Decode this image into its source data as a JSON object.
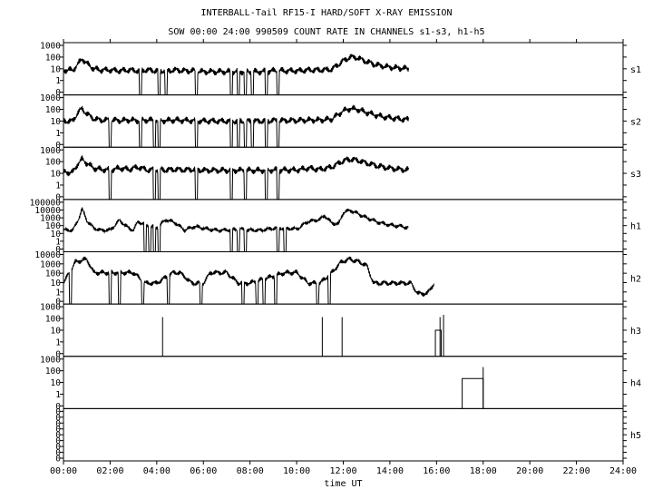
{
  "chart_data": {
    "type": "line",
    "title": "INTERBALL-Tail RF15-I HARD/SOFT X-RAY EMISSION",
    "subtitle": "SOW 00:00 24:00 990509  COUNT RATE IN CHANNELS s1-s3, h1-h5",
    "xlabel": "time UT",
    "x_unit": "hours UT",
    "xlim": [
      0,
      24
    ],
    "x_ticks": [
      "00:00",
      "02:00",
      "04:00",
      "06:00",
      "08:00",
      "10:00",
      "12:00",
      "14:00",
      "16:00",
      "18:00",
      "20:00",
      "22:00",
      "24:00"
    ],
    "y_scale": "log",
    "grid": false,
    "panels": [
      {
        "name": "s1",
        "ylim": [
          0.1,
          1000
        ],
        "y_ticks": [
          "1000",
          "100",
          "10",
          "1",
          "0"
        ],
        "x": [
          0.0,
          0.4,
          0.6,
          0.8,
          1.0,
          1.3,
          1.6,
          2.0,
          2.4,
          2.8,
          3.2,
          3.6,
          4.0,
          4.4,
          4.8,
          5.2,
          5.6,
          6.0,
          6.5,
          7.0,
          7.5,
          8.0,
          8.5,
          9.0,
          9.5,
          10.0,
          10.5,
          11.0,
          11.5,
          12.0,
          12.3,
          12.6,
          13.0,
          13.4,
          13.8,
          14.2,
          14.5,
          14.8
        ],
        "y": [
          8,
          8,
          20,
          60,
          25,
          10,
          8,
          8,
          7,
          8,
          7,
          8,
          7,
          7,
          8,
          7,
          7,
          6,
          6,
          6,
          6,
          6,
          6,
          7,
          7,
          7,
          8,
          8,
          9,
          40,
          80,
          70,
          35,
          20,
          15,
          12,
          11,
          10
        ],
        "dropouts": [
          [
            3.25,
            3.35
          ],
          [
            4.05,
            4.15
          ],
          [
            4.35,
            4.45
          ],
          [
            5.65,
            5.75
          ],
          [
            7.15,
            7.25
          ],
          [
            7.45,
            7.55
          ],
          [
            7.75,
            7.85
          ],
          [
            8.05,
            8.15
          ],
          [
            8.65,
            8.75
          ],
          [
            9.15,
            9.25
          ]
        ]
      },
      {
        "name": "s2",
        "ylim": [
          0.1,
          1000
        ],
        "y_ticks": [
          "1000",
          "100",
          "10",
          "1",
          "0"
        ],
        "x": [
          0.0,
          0.4,
          0.6,
          0.8,
          1.0,
          1.3,
          1.6,
          2.0,
          2.4,
          2.8,
          3.2,
          3.6,
          4.0,
          4.4,
          4.8,
          5.2,
          5.6,
          6.0,
          6.5,
          7.0,
          7.5,
          8.0,
          8.5,
          9.0,
          9.5,
          10.0,
          10.5,
          11.0,
          11.5,
          12.0,
          12.3,
          12.6,
          13.0,
          13.4,
          13.8,
          14.2,
          14.5,
          14.8
        ],
        "y": [
          10,
          10,
          40,
          90,
          35,
          15,
          12,
          12,
          11,
          12,
          11,
          12,
          11,
          11,
          12,
          11,
          11,
          10,
          10,
          10,
          10,
          10,
          10,
          11,
          11,
          11,
          12,
          12,
          14,
          60,
          90,
          80,
          45,
          28,
          20,
          16,
          14,
          13
        ],
        "dropouts": [
          [
            1.95,
            2.05
          ],
          [
            3.25,
            3.35
          ],
          [
            3.85,
            3.95
          ],
          [
            4.05,
            4.15
          ],
          [
            5.65,
            5.75
          ],
          [
            7.15,
            7.25
          ],
          [
            7.45,
            7.55
          ],
          [
            7.75,
            7.85
          ],
          [
            8.05,
            8.15
          ],
          [
            8.65,
            8.75
          ],
          [
            9.15,
            9.25
          ]
        ]
      },
      {
        "name": "s3",
        "ylim": [
          0.1,
          1000
        ],
        "y_ticks": [
          "1000",
          "100",
          "10",
          "1",
          "0"
        ],
        "x": [
          0.0,
          0.4,
          0.6,
          0.8,
          1.0,
          1.3,
          1.6,
          2.0,
          2.4,
          2.8,
          3.2,
          3.6,
          4.0,
          4.4,
          4.8,
          5.2,
          5.6,
          6.0,
          6.5,
          7.0,
          7.5,
          8.0,
          8.5,
          9.0,
          9.5,
          10.0,
          10.5,
          11.0,
          11.5,
          12.0,
          12.3,
          12.6,
          13.0,
          13.4,
          13.8,
          14.2,
          14.5,
          14.8
        ],
        "y": [
          12,
          12,
          50,
          120,
          60,
          25,
          20,
          18,
          25,
          20,
          30,
          18,
          20,
          18,
          20,
          18,
          20,
          17,
          17,
          17,
          17,
          17,
          17,
          18,
          18,
          18,
          25,
          20,
          30,
          90,
          120,
          100,
          60,
          40,
          28,
          22,
          20,
          18
        ],
        "dropouts": [
          [
            1.95,
            2.05
          ],
          [
            3.85,
            3.95
          ],
          [
            4.05,
            4.15
          ],
          [
            5.65,
            5.75
          ],
          [
            7.15,
            7.25
          ],
          [
            7.75,
            7.85
          ],
          [
            8.65,
            8.75
          ],
          [
            9.15,
            9.25
          ]
        ]
      },
      {
        "name": "h1",
        "ylim": [
          0.1,
          100000
        ],
        "y_ticks": [
          "100000",
          "10000",
          "1000",
          "100",
          "10",
          "1",
          "0"
        ],
        "x": [
          0.0,
          0.4,
          0.6,
          0.8,
          1.0,
          1.3,
          1.6,
          2.0,
          2.4,
          2.8,
          3.0,
          3.2,
          3.6,
          4.0,
          4.4,
          4.8,
          5.2,
          5.6,
          6.0,
          6.5,
          7.0,
          7.5,
          8.0,
          8.5,
          9.0,
          9.5,
          10.0,
          10.5,
          11.0,
          11.2,
          11.5,
          11.8,
          12.0,
          12.3,
          12.6,
          13.0,
          13.4,
          13.8,
          14.2,
          14.5,
          14.8
        ],
        "y": [
          30,
          30,
          300,
          8000,
          400,
          50,
          30,
          30,
          400,
          50,
          30,
          300,
          100,
          60,
          500,
          200,
          30,
          80,
          50,
          30,
          30,
          40,
          30,
          30,
          50,
          50,
          40,
          300,
          500,
          1500,
          200,
          150,
          3000,
          6000,
          2500,
          800,
          300,
          150,
          100,
          80,
          60
        ],
        "dropouts": [
          [
            3.45,
            3.55
          ],
          [
            3.65,
            3.75
          ],
          [
            3.85,
            3.95
          ],
          [
            4.05,
            4.15
          ],
          [
            7.15,
            7.25
          ],
          [
            7.45,
            7.55
          ],
          [
            7.75,
            7.85
          ],
          [
            9.15,
            9.25
          ],
          [
            9.45,
            9.55
          ]
        ]
      },
      {
        "name": "h2",
        "ylim": [
          0.1,
          10000
        ],
        "y_ticks": [
          "10000",
          "1000",
          "100",
          "10",
          "1",
          "0"
        ],
        "x": [
          0.0,
          0.5,
          1.0,
          1.3,
          3.0,
          3.5,
          4.0,
          4.7,
          5.0,
          5.5,
          6.0,
          6.3,
          7.0,
          7.5,
          8.0,
          9.5,
          10.0,
          10.5,
          11.0,
          11.5,
          11.9,
          12.3,
          12.7,
          13.0,
          13.3,
          14.0,
          14.9,
          15.2,
          15.6,
          15.9
        ],
        "y": [
          10,
          1000,
          2000,
          100,
          100,
          10,
          10,
          100,
          100,
          10,
          10,
          100,
          100,
          10,
          10,
          100,
          100,
          10,
          10,
          100,
          1000,
          2000,
          1000,
          500,
          10,
          10,
          10,
          1,
          1,
          10
        ],
        "dropouts": [
          [
            0.25,
            0.35
          ],
          [
            1.95,
            2.05
          ],
          [
            2.35,
            2.45
          ],
          [
            3.35,
            3.45
          ],
          [
            4.45,
            4.55
          ],
          [
            5.85,
            5.95
          ],
          [
            7.65,
            7.75
          ],
          [
            8.25,
            8.35
          ],
          [
            8.55,
            8.65
          ],
          [
            9.05,
            9.15
          ],
          [
            10.85,
            10.95
          ],
          [
            11.35,
            11.45
          ]
        ]
      },
      {
        "name": "h3",
        "ylim": [
          0.1,
          1000
        ],
        "y_ticks": [
          "1000",
          "100",
          "10",
          "1",
          "0"
        ],
        "spikes": [
          [
            4.25,
            100
          ],
          [
            11.1,
            100
          ],
          [
            11.95,
            100
          ],
          [
            16.15,
            100
          ],
          [
            16.3,
            150
          ]
        ],
        "boxes": [
          [
            15.95,
            16.2,
            10
          ]
        ]
      },
      {
        "name": "h4",
        "ylim": [
          0.1,
          1000
        ],
        "y_ticks": [
          "1000",
          "100",
          "10",
          "1",
          "0"
        ],
        "spikes": [
          [
            18.0,
            150
          ]
        ],
        "boxes": [
          [
            17.1,
            18.0,
            20
          ]
        ]
      },
      {
        "name": "h5",
        "ylim": [
          0.1,
          1000
        ],
        "y_ticks": [
          "0",
          "0",
          "0",
          "0",
          "0",
          "0",
          "0",
          "0",
          "0"
        ]
      }
    ]
  }
}
